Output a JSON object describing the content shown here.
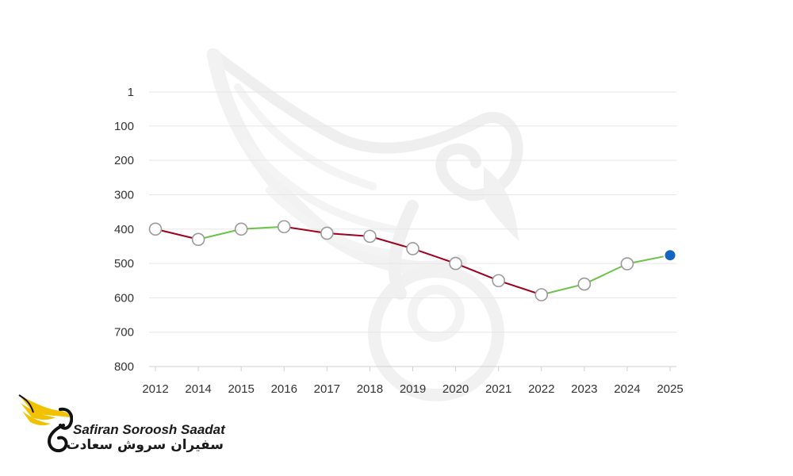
{
  "chart_data": {
    "type": "line",
    "title": "",
    "xlabel": "",
    "ylabel": "",
    "y_inverted": true,
    "ylim": [
      800,
      1
    ],
    "y_ticks": [
      "1",
      "100",
      "200",
      "300",
      "400",
      "500",
      "600",
      "700",
      "800"
    ],
    "y_tick_values": [
      1,
      100,
      200,
      300,
      400,
      500,
      600,
      700,
      800
    ],
    "x_ticks": [
      "2012",
      "2014",
      "2015",
      "2016",
      "2017",
      "2018",
      "2019",
      "2020",
      "2021",
      "2022",
      "2023",
      "2024",
      "2025"
    ],
    "values": [
      400,
      430,
      400,
      393,
      412,
      421,
      457,
      500,
      550,
      591,
      560,
      501,
      476
    ],
    "grid": true,
    "colors": {
      "rank_improving": "#6cc24a",
      "rank_declining": "#a0001c",
      "marker_fill": "#ffffff",
      "marker_stroke": "#9a9a9a",
      "current_marker": "#1565c0",
      "grid": "#e6e6e6"
    }
  },
  "logo": {
    "latin": "Safiran Soroosh Saadat",
    "persian": "سفیران سروش سعادت",
    "icon": "winged-swan-logo-icon",
    "colors": {
      "wing": "#f2c200",
      "body": "#111111"
    }
  },
  "watermark": {
    "icon": "winged-swan-watermark-icon"
  }
}
